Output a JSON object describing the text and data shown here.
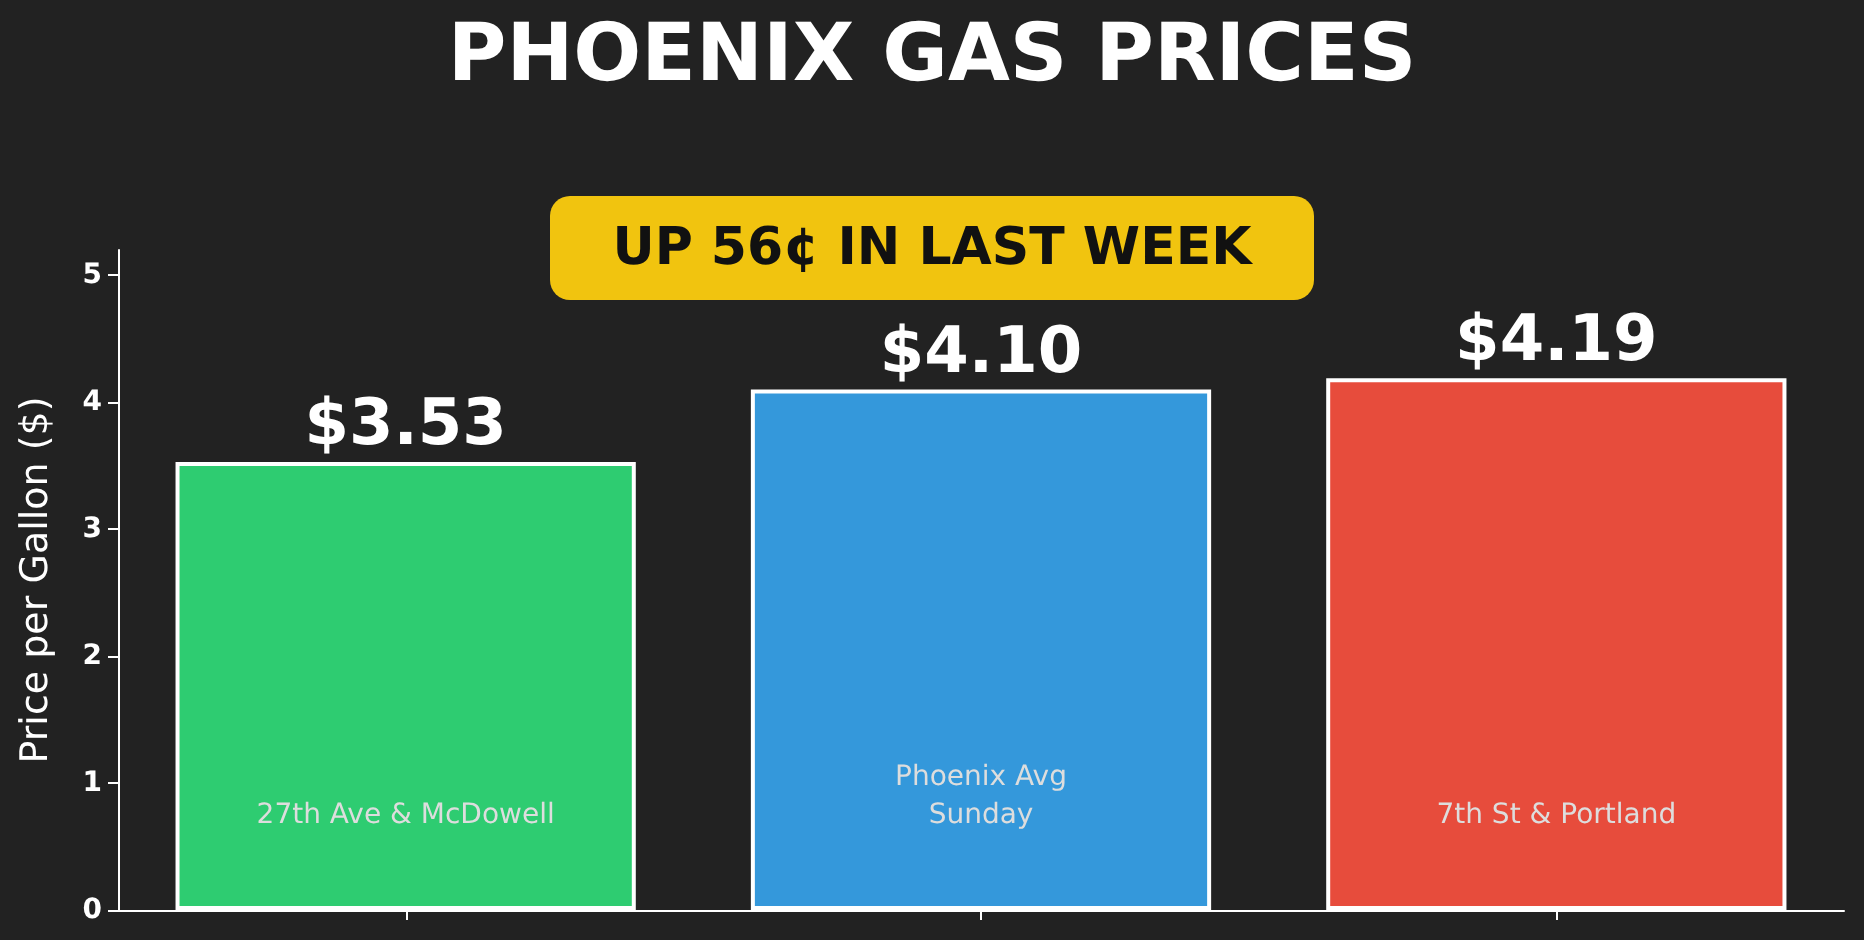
{
  "chart_data": {
    "type": "bar",
    "title": "PHOENIX GAS PRICES",
    "ylabel": "Price per Gallon ($)",
    "annotations": [
      "UP 56¢ IN LAST WEEK"
    ],
    "categories": [
      "27th Ave & McDowell",
      "Phoenix Avg\nSunday",
      "7th St & Portland"
    ],
    "values": [
      3.53,
      4.1,
      4.19
    ],
    "colors": [
      "#2ecc71",
      "#3498db",
      "#e74c3c"
    ],
    "value_labels": [
      "$3.53",
      "$4.10",
      "$4.19"
    ],
    "ylim": [
      0,
      5.2
    ],
    "yticks": [
      0,
      1,
      2,
      3,
      4,
      5
    ],
    "grid": false
  }
}
